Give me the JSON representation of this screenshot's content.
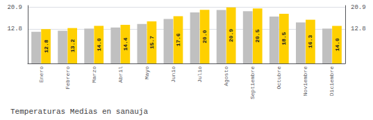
{
  "chart_data": {
    "type": "bar",
    "title": "Temperaturas Medias en sanauja",
    "categories": [
      "Enero",
      "Febrero",
      "Marzo",
      "Abril",
      "Mayo",
      "Junio",
      "Julio",
      "Agosto",
      "Septiembre",
      "Octubre",
      "Noviembre",
      "Diciembre"
    ],
    "series": [
      {
        "color": "#C0C0C0",
        "values": [
          11.8,
          12.2,
          13.0,
          13.4,
          14.7,
          16.6,
          19.0,
          19.9,
          19.5,
          17.5,
          15.3,
          13.0
        ]
      },
      {
        "color": "#FFD000",
        "values": [
          12.8,
          13.2,
          14.0,
          14.4,
          15.7,
          17.6,
          20.0,
          20.9,
          20.5,
          18.5,
          16.3,
          14.0
        ],
        "data_labels": true,
        "value_labels": [
          "12.8",
          "13.2",
          "14.0",
          "14.4",
          "15.7",
          "17.6",
          "20.0",
          "20.9",
          "20.5",
          "18.5",
          "16.3",
          "14.0"
        ]
      }
    ],
    "ylim": [
      0,
      21.6
    ],
    "yticks": [
      12.8,
      20.9
    ],
    "y2lim": [
      0,
      21.6
    ],
    "y2ticks": [
      12.8,
      20.9
    ],
    "grid": true
  }
}
